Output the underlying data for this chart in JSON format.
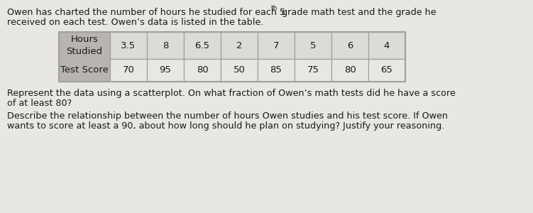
{
  "hours_studied": [
    3.5,
    8,
    6.5,
    2,
    7,
    5,
    6,
    4
  ],
  "test_scores": [
    70,
    95,
    80,
    50,
    85,
    75,
    80,
    65
  ],
  "bg_color": "#e9e7e3",
  "header_bg": "#b8b5b0",
  "cell_bg_top": "#dddbd6",
  "cell_bg_bot": "#e9e7e3",
  "table_border": "#a0a0a0",
  "text_color": "#1a1a1a",
  "font_size_body": 9.2,
  "font_size_table": 9.5,
  "font_size_super": 6.5
}
